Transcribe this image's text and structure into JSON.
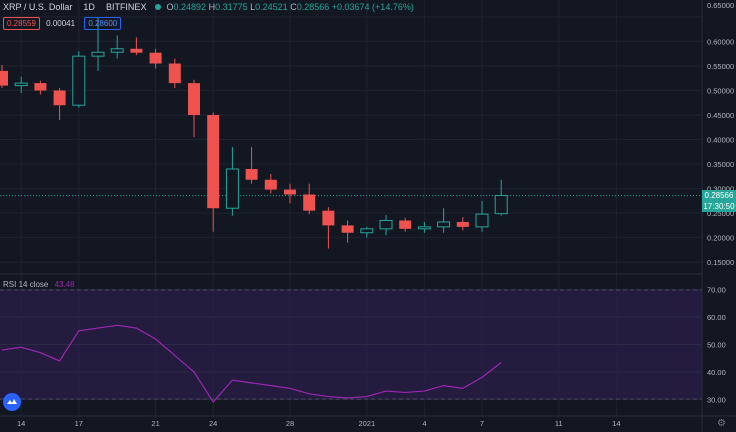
{
  "header": {
    "symbol": "XRP / U.S. Dollar",
    "interval": "1D",
    "exchange": "BITFINEX",
    "o_label": "O",
    "o_val": "0.24892",
    "h_label": "H",
    "h_val": "0.31775",
    "l_label": "L",
    "l_val": "0.24521",
    "c_label": "C",
    "c_val": "0.28566",
    "change": "+0.03674 (+14.76%)"
  },
  "quote": {
    "bid": "0.28559",
    "spread": "0.00041",
    "ask": "0.28600"
  },
  "price_tag": {
    "price": "0.28566",
    "time": "17:30:50"
  },
  "rsi_label": {
    "name": "RSI",
    "params": "14 close",
    "value": "43.48"
  },
  "colors": {
    "up": "#26a69a",
    "down": "#ef5350",
    "rsi": "#9c27b0",
    "background": "#131722"
  },
  "chart_data": [
    {
      "type": "candlestick",
      "ylim": [
        0.13,
        0.66
      ],
      "y_ticks": [
        "0.65000",
        "0.60000",
        "0.55000",
        "0.50000",
        "0.45000",
        "0.40000",
        "0.35000",
        "0.30000",
        "0.25000",
        "0.20000",
        "0.15000"
      ],
      "y_tick_values": [
        0.65,
        0.6,
        0.55,
        0.5,
        0.45,
        0.4,
        0.35,
        0.3,
        0.25,
        0.2,
        0.15
      ],
      "top_tick": "0.65000",
      "x_ticks": [
        "14",
        "17",
        "21",
        "24",
        "28",
        "2021",
        "4",
        "7",
        "11",
        "14"
      ],
      "x_tick_index": [
        1,
        4,
        8,
        11,
        15,
        19,
        22,
        25,
        29,
        32
      ],
      "current_price": 0.28566,
      "candles": [
        {
          "o": 0.54,
          "h": 0.552,
          "l": 0.505,
          "c": 0.51
        },
        {
          "o": 0.51,
          "h": 0.528,
          "l": 0.495,
          "c": 0.515
        },
        {
          "o": 0.515,
          "h": 0.52,
          "l": 0.492,
          "c": 0.5
        },
        {
          "o": 0.5,
          "h": 0.505,
          "l": 0.44,
          "c": 0.47
        },
        {
          "o": 0.47,
          "h": 0.58,
          "l": 0.465,
          "c": 0.57
        },
        {
          "o": 0.57,
          "h": 0.648,
          "l": 0.54,
          "c": 0.578
        },
        {
          "o": 0.578,
          "h": 0.612,
          "l": 0.565,
          "c": 0.585
        },
        {
          "o": 0.585,
          "h": 0.608,
          "l": 0.572,
          "c": 0.577
        },
        {
          "o": 0.577,
          "h": 0.585,
          "l": 0.545,
          "c": 0.555
        },
        {
          "o": 0.555,
          "h": 0.565,
          "l": 0.505,
          "c": 0.515
        },
        {
          "o": 0.515,
          "h": 0.522,
          "l": 0.405,
          "c": 0.45
        },
        {
          "o": 0.45,
          "h": 0.455,
          "l": 0.212,
          "c": 0.26
        },
        {
          "o": 0.26,
          "h": 0.385,
          "l": 0.245,
          "c": 0.34
        },
        {
          "o": 0.34,
          "h": 0.385,
          "l": 0.31,
          "c": 0.318
        },
        {
          "o": 0.318,
          "h": 0.33,
          "l": 0.29,
          "c": 0.298
        },
        {
          "o": 0.298,
          "h": 0.31,
          "l": 0.27,
          "c": 0.288
        },
        {
          "o": 0.288,
          "h": 0.31,
          "l": 0.248,
          "c": 0.255
        },
        {
          "o": 0.255,
          "h": 0.262,
          "l": 0.178,
          "c": 0.225
        },
        {
          "o": 0.225,
          "h": 0.235,
          "l": 0.19,
          "c": 0.21
        },
        {
          "o": 0.21,
          "h": 0.222,
          "l": 0.2,
          "c": 0.218
        },
        {
          "o": 0.218,
          "h": 0.246,
          "l": 0.205,
          "c": 0.235
        },
        {
          "o": 0.235,
          "h": 0.24,
          "l": 0.212,
          "c": 0.218
        },
        {
          "o": 0.218,
          "h": 0.232,
          "l": 0.21,
          "c": 0.222
        },
        {
          "o": 0.222,
          "h": 0.26,
          "l": 0.21,
          "c": 0.232
        },
        {
          "o": 0.232,
          "h": 0.242,
          "l": 0.215,
          "c": 0.222
        },
        {
          "o": 0.222,
          "h": 0.275,
          "l": 0.212,
          "c": 0.248
        },
        {
          "o": 0.249,
          "h": 0.318,
          "l": 0.245,
          "c": 0.286
        }
      ]
    },
    {
      "type": "line",
      "name": "RSI 14 close",
      "ylim": [
        25,
        75
      ],
      "y_ticks": [
        "70.00",
        "60.00",
        "50.00",
        "40.00",
        "30.00"
      ],
      "y_tick_values": [
        70,
        60,
        50,
        40,
        30
      ],
      "band": [
        30,
        70
      ],
      "values": [
        48,
        49,
        47,
        44,
        55,
        56,
        57,
        56,
        52,
        46,
        40,
        29,
        37,
        36,
        35,
        34,
        32,
        31,
        30.5,
        31,
        33,
        32.5,
        33,
        35,
        34,
        38,
        43.48
      ]
    }
  ]
}
